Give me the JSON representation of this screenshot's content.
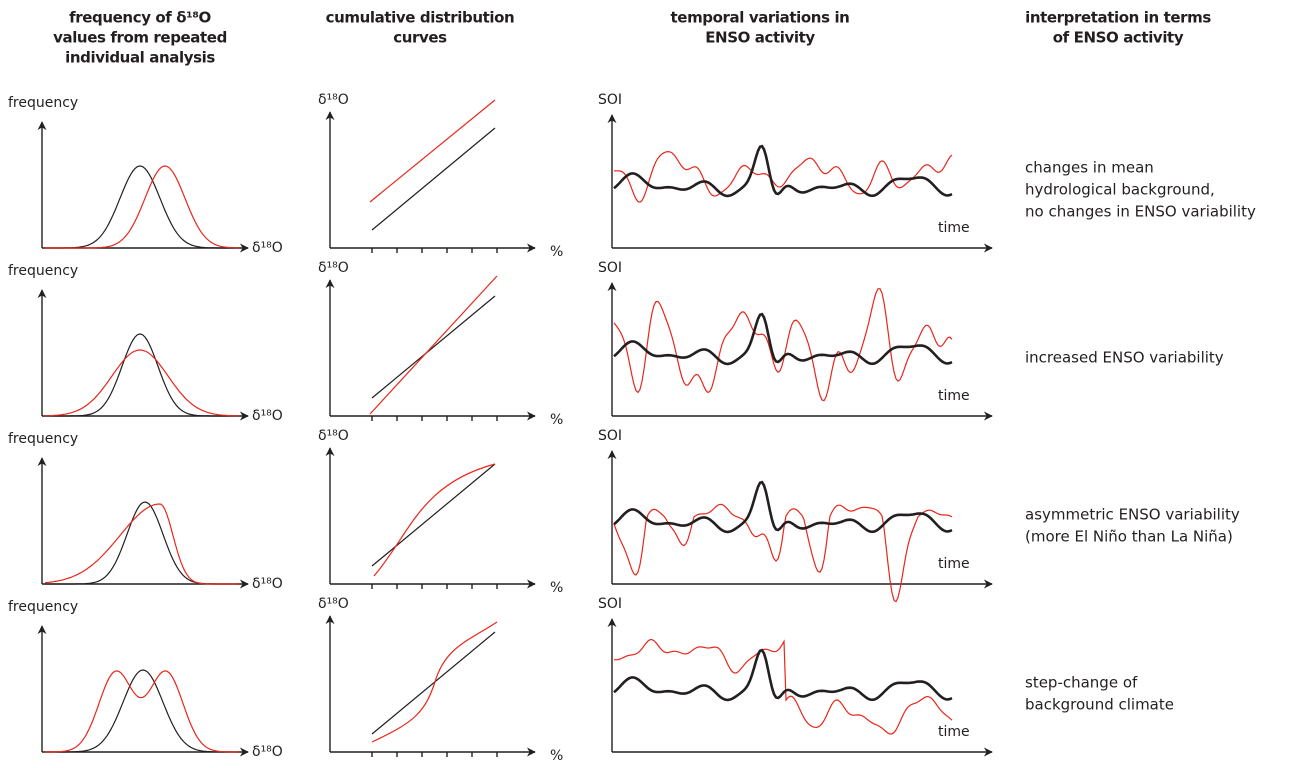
{
  "header": {
    "columns": [
      [
        "frequency of δ¹⁸O",
        "values from repeated",
        "individual analysis"
      ],
      [
        "cumulative distribution",
        "curves"
      ],
      [
        "temporal variations in",
        "ENSO activity"
      ],
      [
        "interpretation in terms",
        "of ENSO activity"
      ]
    ]
  },
  "rows": [
    {
      "freq_y": "frequency",
      "freq_x": "δ¹⁸O",
      "cdf_y": "δ¹⁸O",
      "cdf_x": "%",
      "soi_y": "SOI",
      "soi_x": "time",
      "interpretation": [
        "changes in mean",
        "hydrological background,",
        "no changes in ENSO variability"
      ]
    },
    {
      "freq_y": "frequency",
      "freq_x": "δ¹⁸O",
      "cdf_y": "δ¹⁸O",
      "cdf_x": "%",
      "soi_y": "SOI",
      "soi_x": "time",
      "interpretation": [
        "increased ENSO variability"
      ]
    },
    {
      "freq_y": "frequency",
      "freq_x": "δ¹⁸O",
      "cdf_y": "δ¹⁸O",
      "cdf_x": "%",
      "soi_y": "SOI",
      "soi_x": "time",
      "interpretation": [
        "asymmetric ENSO variability",
        "(more El Niño than La Niña)"
      ]
    },
    {
      "freq_y": "frequency",
      "freq_x": "δ¹⁸O",
      "cdf_y": "δ¹⁸O",
      "cdf_x": "%",
      "soi_y": "SOI",
      "soi_x": "time",
      "interpretation": [
        "step-change of",
        "background climate"
      ]
    }
  ]
}
